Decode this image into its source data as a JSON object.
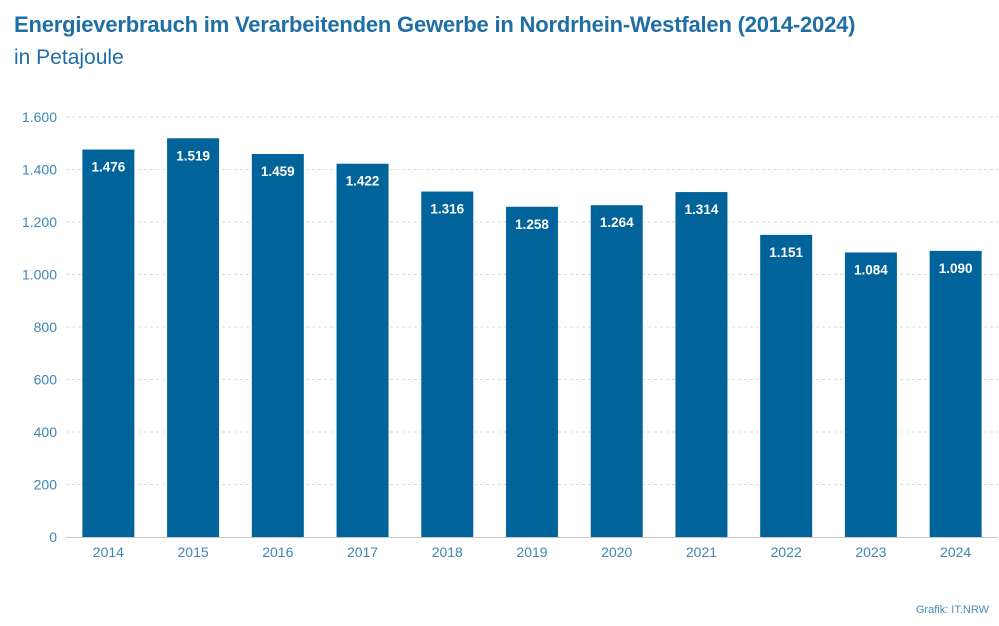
{
  "chart_data": {
    "type": "bar",
    "title": "Energieverbrauch im Verarbeitenden Gewerbe in Nordrhein-Westfalen (2014-2024)",
    "subtitle": "in Petajoule",
    "categories": [
      "2014",
      "2015",
      "2016",
      "2017",
      "2018",
      "2019",
      "2020",
      "2021",
      "2022",
      "2023",
      "2024"
    ],
    "values": [
      1476,
      1519,
      1459,
      1422,
      1316,
      1258,
      1264,
      1314,
      1151,
      1084,
      1090
    ],
    "data_labels": [
      "1.476",
      "1.519",
      "1.459",
      "1.422",
      "1.316",
      "1.258",
      "1.264",
      "1.314",
      "1.151",
      "1.084",
      "1.090"
    ],
    "xlabel": "",
    "ylabel": "",
    "ylim": [
      0,
      1600
    ],
    "yticks": [
      0,
      200,
      400,
      600,
      800,
      1000,
      1200,
      1400,
      1600
    ],
    "ytick_labels": [
      "0",
      "200",
      "400",
      "600",
      "800",
      "1.000",
      "1.200",
      "1.400",
      "1.600"
    ],
    "grid": "horizontal dashed",
    "legend": "none",
    "colors": {
      "bar": "#00639a",
      "text": "#1f6fa5",
      "axis_text": "#3d86b8",
      "grid": "#d9d9d9"
    }
  },
  "credit": "Grafik: IT.NRW"
}
